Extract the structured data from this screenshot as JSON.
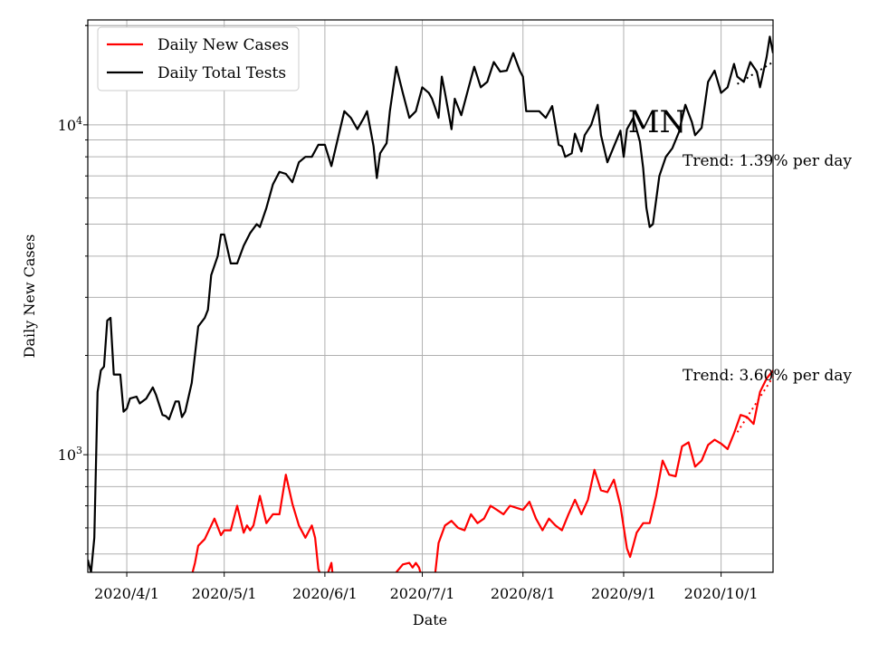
{
  "chart_data": {
    "type": "line",
    "title": "MN",
    "xlabel": "Date",
    "ylabel": "Daily New Cases",
    "y_scale": "log",
    "ylim": [
      440,
      20800
    ],
    "xlim": [
      "2020-03-20",
      "2020-10-17"
    ],
    "grid": true,
    "legend_placement": "top-left",
    "x_ticks": [
      "2020-04-01",
      "2020-05-01",
      "2020-06-01",
      "2020-07-01",
      "2020-08-01",
      "2020-09-01",
      "2020-10-01"
    ],
    "x_tick_labels": [
      "2020/4/1",
      "2020/5/1",
      "2020/6/1",
      "2020/7/1",
      "2020/8/1",
      "2020/9/1",
      "2020/10/1"
    ],
    "y_tick_labels": [
      {
        "value": 1000,
        "base": "10",
        "exp": "3"
      },
      {
        "value": 10000,
        "base": "10",
        "exp": "4"
      }
    ],
    "series": [
      {
        "name": "Daily New Cases",
        "color": "#ff0000",
        "points": [
          [
            "2020-04-21",
            430
          ],
          [
            "2020-04-22",
            470
          ],
          [
            "2020-04-23",
            530
          ],
          [
            "2020-04-25",
            555
          ],
          [
            "2020-04-27",
            610
          ],
          [
            "2020-04-28",
            640
          ],
          [
            "2020-04-30",
            570
          ],
          [
            "2020-05-01",
            590
          ],
          [
            "2020-05-03",
            590
          ],
          [
            "2020-05-05",
            700
          ],
          [
            "2020-05-07",
            580
          ],
          [
            "2020-05-08",
            610
          ],
          [
            "2020-05-09",
            590
          ],
          [
            "2020-05-10",
            610
          ],
          [
            "2020-05-12",
            750
          ],
          [
            "2020-05-14",
            620
          ],
          [
            "2020-05-16",
            660
          ],
          [
            "2020-05-18",
            660
          ],
          [
            "2020-05-20",
            870
          ],
          [
            "2020-05-22",
            710
          ],
          [
            "2020-05-24",
            610
          ],
          [
            "2020-05-26",
            560
          ],
          [
            "2020-05-28",
            610
          ],
          [
            "2020-05-29",
            560
          ],
          [
            "2020-05-30",
            450
          ],
          [
            "2020-06-01",
            400
          ],
          [
            "2020-06-02",
            440
          ],
          [
            "2020-06-03",
            470
          ],
          [
            "2020-06-04",
            380
          ],
          [
            "2020-06-18",
            410
          ],
          [
            "2020-06-19",
            390
          ],
          [
            "2020-06-21",
            380
          ],
          [
            "2020-06-23",
            440
          ],
          [
            "2020-06-25",
            465
          ],
          [
            "2020-06-27",
            470
          ],
          [
            "2020-06-28",
            455
          ],
          [
            "2020-06-29",
            470
          ],
          [
            "2020-06-30",
            455
          ],
          [
            "2020-07-01",
            420
          ],
          [
            "2020-07-03",
            410
          ],
          [
            "2020-07-05",
            440
          ],
          [
            "2020-07-06",
            540
          ],
          [
            "2020-07-08",
            610
          ],
          [
            "2020-07-10",
            630
          ],
          [
            "2020-07-12",
            600
          ],
          [
            "2020-07-14",
            590
          ],
          [
            "2020-07-16",
            660
          ],
          [
            "2020-07-18",
            620
          ],
          [
            "2020-07-20",
            640
          ],
          [
            "2020-07-22",
            700
          ],
          [
            "2020-07-24",
            680
          ],
          [
            "2020-07-26",
            660
          ],
          [
            "2020-07-28",
            700
          ],
          [
            "2020-07-30",
            690
          ],
          [
            "2020-08-01",
            680
          ],
          [
            "2020-08-03",
            720
          ],
          [
            "2020-08-05",
            640
          ],
          [
            "2020-08-07",
            590
          ],
          [
            "2020-08-09",
            640
          ],
          [
            "2020-08-11",
            610
          ],
          [
            "2020-08-13",
            590
          ],
          [
            "2020-08-15",
            660
          ],
          [
            "2020-08-17",
            730
          ],
          [
            "2020-08-19",
            660
          ],
          [
            "2020-08-21",
            730
          ],
          [
            "2020-08-23",
            900
          ],
          [
            "2020-08-25",
            780
          ],
          [
            "2020-08-27",
            770
          ],
          [
            "2020-08-29",
            840
          ],
          [
            "2020-08-31",
            700
          ],
          [
            "2020-09-02",
            520
          ],
          [
            "2020-09-03",
            490
          ],
          [
            "2020-09-05",
            580
          ],
          [
            "2020-09-07",
            620
          ],
          [
            "2020-09-09",
            620
          ],
          [
            "2020-09-11",
            750
          ],
          [
            "2020-09-13",
            960
          ],
          [
            "2020-09-15",
            870
          ],
          [
            "2020-09-17",
            860
          ],
          [
            "2020-09-19",
            1060
          ],
          [
            "2020-09-21",
            1090
          ],
          [
            "2020-09-23",
            920
          ],
          [
            "2020-09-25",
            960
          ],
          [
            "2020-09-27",
            1070
          ],
          [
            "2020-09-29",
            1110
          ],
          [
            "2020-10-01",
            1080
          ],
          [
            "2020-10-03",
            1040
          ],
          [
            "2020-10-05",
            1160
          ],
          [
            "2020-10-07",
            1320
          ],
          [
            "2020-10-09",
            1300
          ],
          [
            "2020-10-11",
            1240
          ],
          [
            "2020-10-13",
            1550
          ],
          [
            "2020-10-15",
            1700
          ],
          [
            "2020-10-17",
            1800
          ]
        ]
      },
      {
        "name": "Daily Total Tests",
        "color": "#000000",
        "points": [
          [
            "2020-03-20",
            480
          ],
          [
            "2020-03-21",
            440
          ],
          [
            "2020-03-22",
            560
          ],
          [
            "2020-03-23",
            1550
          ],
          [
            "2020-03-24",
            1800
          ],
          [
            "2020-03-25",
            1850
          ],
          [
            "2020-03-26",
            2550
          ],
          [
            "2020-03-27",
            2600
          ],
          [
            "2020-03-28",
            1750
          ],
          [
            "2020-03-30",
            1750
          ],
          [
            "2020-03-31",
            1350
          ],
          [
            "2020-04-01",
            1380
          ],
          [
            "2020-04-02",
            1480
          ],
          [
            "2020-04-04",
            1500
          ],
          [
            "2020-04-05",
            1430
          ],
          [
            "2020-04-07",
            1480
          ],
          [
            "2020-04-09",
            1600
          ],
          [
            "2020-04-10",
            1520
          ],
          [
            "2020-04-12",
            1320
          ],
          [
            "2020-04-13",
            1310
          ],
          [
            "2020-04-14",
            1280
          ],
          [
            "2020-04-16",
            1450
          ],
          [
            "2020-04-17",
            1450
          ],
          [
            "2020-04-18",
            1300
          ],
          [
            "2020-04-19",
            1350
          ],
          [
            "2020-04-21",
            1650
          ],
          [
            "2020-04-23",
            2450
          ],
          [
            "2020-04-25",
            2600
          ],
          [
            "2020-04-26",
            2750
          ],
          [
            "2020-04-27",
            3500
          ],
          [
            "2020-04-29",
            4000
          ],
          [
            "2020-04-30",
            4650
          ],
          [
            "2020-05-01",
            4650
          ],
          [
            "2020-05-03",
            3800
          ],
          [
            "2020-05-05",
            3800
          ],
          [
            "2020-05-07",
            4300
          ],
          [
            "2020-05-09",
            4700
          ],
          [
            "2020-05-11",
            5000
          ],
          [
            "2020-05-12",
            4900
          ],
          [
            "2020-05-14",
            5600
          ],
          [
            "2020-05-16",
            6600
          ],
          [
            "2020-05-18",
            7200
          ],
          [
            "2020-05-20",
            7100
          ],
          [
            "2020-05-22",
            6700
          ],
          [
            "2020-05-24",
            7700
          ],
          [
            "2020-05-26",
            8000
          ],
          [
            "2020-05-28",
            8000
          ],
          [
            "2020-05-30",
            8700
          ],
          [
            "2020-06-01",
            8700
          ],
          [
            "2020-06-03",
            7500
          ],
          [
            "2020-06-05",
            9100
          ],
          [
            "2020-06-07",
            11000
          ],
          [
            "2020-06-09",
            10500
          ],
          [
            "2020-06-11",
            9700
          ],
          [
            "2020-06-13",
            10500
          ],
          [
            "2020-06-14",
            11000
          ],
          [
            "2020-06-16",
            8600
          ],
          [
            "2020-06-17",
            6900
          ],
          [
            "2020-06-18",
            8200
          ],
          [
            "2020-06-20",
            8800
          ],
          [
            "2020-06-21",
            11000
          ],
          [
            "2020-06-23",
            15000
          ],
          [
            "2020-06-25",
            12500
          ],
          [
            "2020-06-27",
            10500
          ],
          [
            "2020-06-29",
            11000
          ],
          [
            "2020-07-01",
            13000
          ],
          [
            "2020-07-03",
            12500
          ],
          [
            "2020-07-04",
            12000
          ],
          [
            "2020-07-06",
            10500
          ],
          [
            "2020-07-07",
            14000
          ],
          [
            "2020-07-08",
            12500
          ],
          [
            "2020-07-10",
            9700
          ],
          [
            "2020-07-11",
            12000
          ],
          [
            "2020-07-13",
            10700
          ],
          [
            "2020-07-15",
            12700
          ],
          [
            "2020-07-17",
            15000
          ],
          [
            "2020-07-19",
            13000
          ],
          [
            "2020-07-21",
            13500
          ],
          [
            "2020-07-23",
            15500
          ],
          [
            "2020-07-25",
            14500
          ],
          [
            "2020-07-27",
            14600
          ],
          [
            "2020-07-29",
            16500
          ],
          [
            "2020-07-31",
            14600
          ],
          [
            "2020-08-01",
            14000
          ],
          [
            "2020-08-02",
            11000
          ],
          [
            "2020-08-06",
            11000
          ],
          [
            "2020-08-08",
            10500
          ],
          [
            "2020-08-10",
            11400
          ],
          [
            "2020-08-12",
            8700
          ],
          [
            "2020-08-13",
            8600
          ],
          [
            "2020-08-14",
            8000
          ],
          [
            "2020-08-16",
            8200
          ],
          [
            "2020-08-17",
            9400
          ],
          [
            "2020-08-19",
            8300
          ],
          [
            "2020-08-20",
            9300
          ],
          [
            "2020-08-22",
            10000
          ],
          [
            "2020-08-24",
            11500
          ],
          [
            "2020-08-25",
            9300
          ],
          [
            "2020-08-27",
            7700
          ],
          [
            "2020-08-29",
            8600
          ],
          [
            "2020-08-31",
            9600
          ],
          [
            "2020-09-01",
            8000
          ],
          [
            "2020-09-02",
            9700
          ],
          [
            "2020-09-04",
            10500
          ],
          [
            "2020-09-06",
            8900
          ],
          [
            "2020-09-07",
            7400
          ],
          [
            "2020-09-08",
            5600
          ],
          [
            "2020-09-09",
            4900
          ],
          [
            "2020-09-10",
            5000
          ],
          [
            "2020-09-12",
            7000
          ],
          [
            "2020-09-14",
            8000
          ],
          [
            "2020-09-16",
            8500
          ],
          [
            "2020-09-18",
            9500
          ],
          [
            "2020-09-20",
            11500
          ],
          [
            "2020-09-22",
            10200
          ],
          [
            "2020-09-23",
            9300
          ],
          [
            "2020-09-25",
            9800
          ],
          [
            "2020-09-27",
            13500
          ],
          [
            "2020-09-29",
            14600
          ],
          [
            "2020-10-01",
            12500
          ],
          [
            "2020-10-03",
            13000
          ],
          [
            "2020-10-05",
            15300
          ],
          [
            "2020-10-06",
            14000
          ],
          [
            "2020-10-08",
            13500
          ],
          [
            "2020-10-10",
            15500
          ],
          [
            "2020-10-12",
            14500
          ],
          [
            "2020-10-13",
            13000
          ],
          [
            "2020-10-15",
            16000
          ],
          [
            "2020-10-16",
            18500
          ],
          [
            "2020-10-17",
            16500
          ]
        ]
      }
    ],
    "trend_lines": [
      {
        "color": "#ff0000",
        "start": [
          "2020-10-06",
          1170
        ],
        "end": [
          "2020-10-17",
          1720
        ],
        "label": "Trend: 3.60% per day"
      },
      {
        "color": "#000000",
        "start": [
          "2020-10-06",
          13300
        ],
        "end": [
          "2020-10-17",
          15500
        ],
        "label": "Trend: 1.39% per day"
      }
    ]
  }
}
